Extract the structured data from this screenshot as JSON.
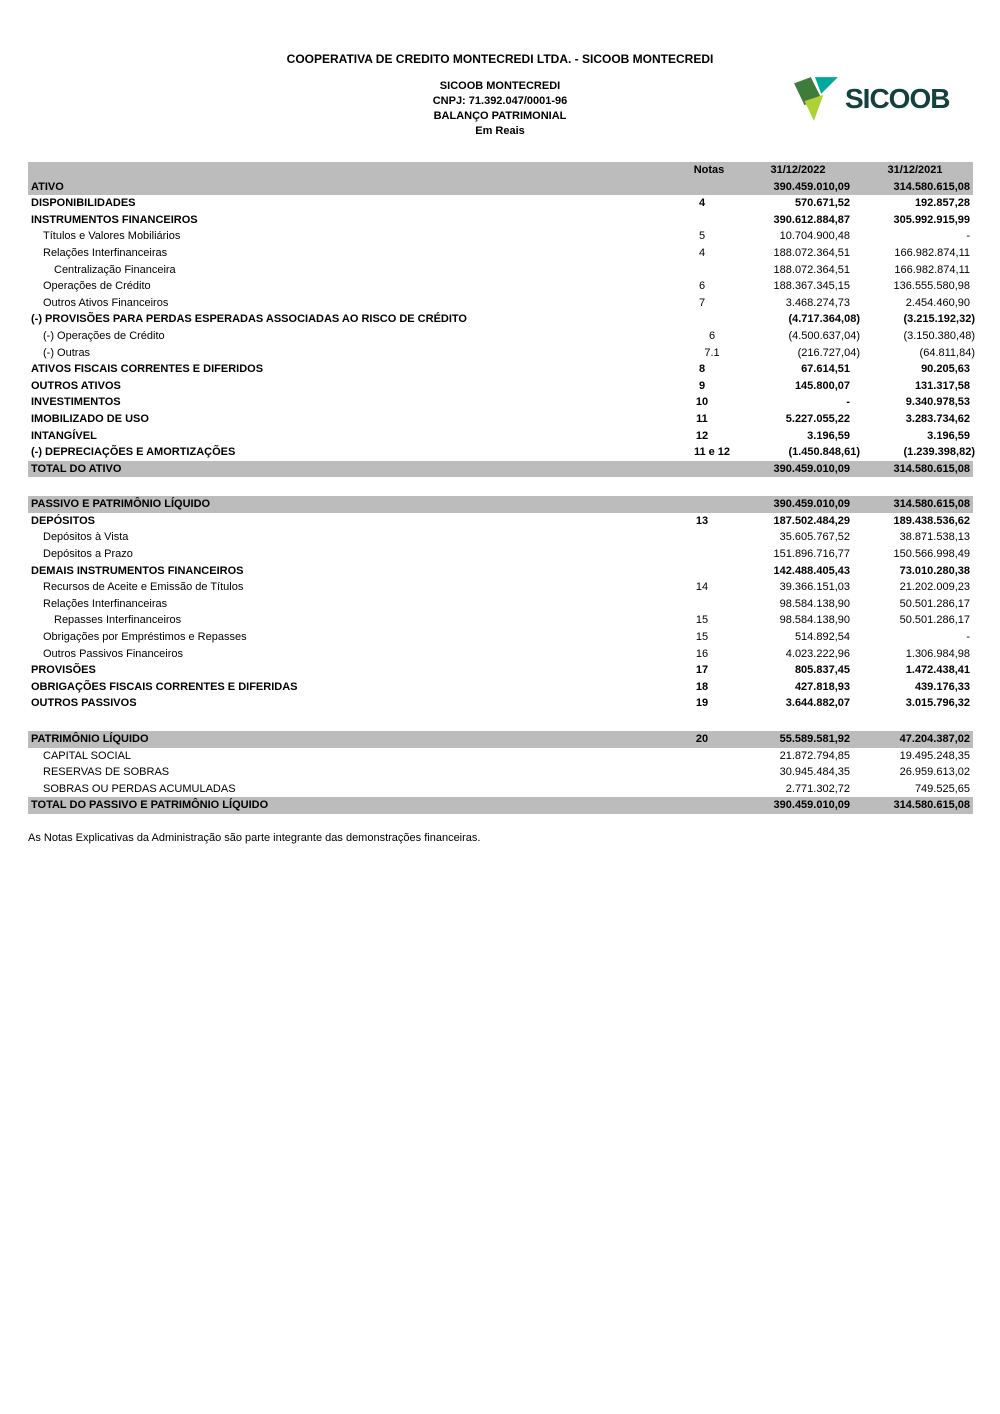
{
  "header": {
    "company_line": "COOPERATIVA DE CREDITO MONTECREDI LTDA. - SICOOB MONTECREDI",
    "entity_name": "SICOOB MONTECREDI",
    "cnpj_line": "CNPJ: 71.392.047/0001-96",
    "statement_title": "BALANÇO PATRIMONIAL",
    "currency_note": "Em Reais",
    "logo": {
      "text": "SICOOB",
      "colors": {
        "wordmark": "#14403d",
        "dark_green": "#3f7c3c",
        "teal": "#00a99b",
        "lime": "#aed136"
      }
    }
  },
  "table": {
    "band_color": "#bcbcbc",
    "columns": [
      "Notas",
      "31/12/2022",
      "31/12/2021"
    ],
    "rows": [
      {
        "label": "ATIVO",
        "nota": "",
        "v2022": "390.459.010,09",
        "v2021": "314.580.615,08",
        "style": "section"
      },
      {
        "label": "DISPONIBILIDADES",
        "nota": "4",
        "v2022": "570.671,52",
        "v2021": "192.857,28",
        "style": "bold"
      },
      {
        "label": "INSTRUMENTOS FINANCEIROS",
        "nota": "",
        "v2022": "390.612.884,87",
        "v2021": "305.992.915,99",
        "style": "bold"
      },
      {
        "label": "Títulos e Valores Mobiliários",
        "nota": "5",
        "v2022": "10.704.900,48",
        "v2021": "-",
        "style": "item"
      },
      {
        "label": "Relações Interfinanceiras",
        "nota": "4",
        "v2022": "188.072.364,51",
        "v2021": "166.982.874,11",
        "style": "item"
      },
      {
        "label": "Centralização Financeira",
        "nota": "",
        "v2022": "188.072.364,51",
        "v2021": "166.982.874,11",
        "style": "item2"
      },
      {
        "label": "Operações de Crédito",
        "nota": "6",
        "v2022": "188.367.345,15",
        "v2021": "136.555.580,98",
        "style": "item"
      },
      {
        "label": "Outros Ativos Financeiros",
        "nota": "7",
        "v2022": "3.468.274,73",
        "v2021": "2.454.460,90",
        "style": "item"
      },
      {
        "label": "(-) PROVISÕES PARA PERDAS ESPERADAS ASSOCIADAS AO RISCO DE CRÉDITO",
        "nota": "",
        "v2022": "(4.717.364,08)",
        "v2021": "(3.215.192,32)",
        "style": "bold"
      },
      {
        "label": "(-) Operações de Crédito",
        "nota": "6",
        "v2022": "(4.500.637,04)",
        "v2021": "(3.150.380,48)",
        "style": "item"
      },
      {
        "label": "(-) Outras",
        "nota": "7.1",
        "v2022": "(216.727,04)",
        "v2021": "(64.811,84)",
        "style": "item"
      },
      {
        "label": "ATIVOS FISCAIS CORRENTES E DIFERIDOS",
        "nota": "8",
        "v2022": "67.614,51",
        "v2021": "90.205,63",
        "style": "bold"
      },
      {
        "label": "OUTROS ATIVOS",
        "nota": "9",
        "v2022": "145.800,07",
        "v2021": "131.317,58",
        "style": "bold"
      },
      {
        "label": "INVESTIMENTOS",
        "nota": "10",
        "v2022": "-",
        "v2021": "9.340.978,53",
        "style": "bold"
      },
      {
        "label": "IMOBILIZADO DE USO",
        "nota": "11",
        "v2022": "5.227.055,22",
        "v2021": "3.283.734,62",
        "style": "bold"
      },
      {
        "label": "INTANGÍVEL",
        "nota": "12",
        "v2022": "3.196,59",
        "v2021": "3.196,59",
        "style": "bold"
      },
      {
        "label": "(-) DEPRECIAÇÕES E AMORTIZAÇÕES",
        "nota": "11 e 12",
        "v2022": "(1.450.848,61)",
        "v2021": "(1.239.398,82)",
        "style": "bold"
      },
      {
        "label": "TOTAL DO ATIVO",
        "nota": "",
        "v2022": "390.459.010,09",
        "v2021": "314.580.615,08",
        "style": "total"
      },
      {
        "style": "gap"
      },
      {
        "label": "PASSIVO E PATRIMÔNIO LÍQUIDO",
        "nota": "",
        "v2022": "390.459.010,09",
        "v2021": "314.580.615,08",
        "style": "section"
      },
      {
        "label": "DEPÓSITOS",
        "nota": "13",
        "v2022": "187.502.484,29",
        "v2021": "189.438.536,62",
        "style": "bold"
      },
      {
        "label": "Depósitos à Vista",
        "nota": "",
        "v2022": "35.605.767,52",
        "v2021": "38.871.538,13",
        "style": "item"
      },
      {
        "label": "Depósitos a Prazo",
        "nota": "",
        "v2022": "151.896.716,77",
        "v2021": "150.566.998,49",
        "style": "item"
      },
      {
        "label": "DEMAIS INSTRUMENTOS FINANCEIROS",
        "nota": "",
        "v2022": "142.488.405,43",
        "v2021": "73.010.280,38",
        "style": "bold"
      },
      {
        "label": "Recursos de Aceite e Emissão de Títulos",
        "nota": "14",
        "v2022": "39.366.151,03",
        "v2021": "21.202.009,23",
        "style": "item"
      },
      {
        "label": "Relações Interfinanceiras",
        "nota": "",
        "v2022": "98.584.138,90",
        "v2021": "50.501.286,17",
        "style": "item"
      },
      {
        "label": "Repasses Interfinanceiros",
        "nota": "15",
        "v2022": "98.584.138,90",
        "v2021": "50.501.286,17",
        "style": "item2"
      },
      {
        "label": "Obrigações por Empréstimos e Repasses",
        "nota": "15",
        "v2022": "514.892,54",
        "v2021": "-",
        "style": "item"
      },
      {
        "label": "Outros Passivos Financeiros",
        "nota": "16",
        "v2022": "4.023.222,96",
        "v2021": "1.306.984,98",
        "style": "item"
      },
      {
        "label": "PROVISÕES",
        "nota": "17",
        "v2022": "805.837,45",
        "v2021": "1.472.438,41",
        "style": "bold"
      },
      {
        "label": "OBRIGAÇÕES FISCAIS CORRENTES E DIFERIDAS",
        "nota": "18",
        "v2022": "427.818,93",
        "v2021": "439.176,33",
        "style": "bold"
      },
      {
        "label": "OUTROS PASSIVOS",
        "nota": "19",
        "v2022": "3.644.882,07",
        "v2021": "3.015.796,32",
        "style": "bold"
      },
      {
        "style": "gap"
      },
      {
        "label": "PATRIMÔNIO LÍQUIDO",
        "nota": "20",
        "v2022": "55.589.581,92",
        "v2021": "47.204.387,02",
        "style": "section"
      },
      {
        "label": "CAPITAL SOCIAL",
        "nota": "",
        "v2022": "21.872.794,85",
        "v2021": "19.495.248,35",
        "style": "item"
      },
      {
        "label": "RESERVAS DE SOBRAS",
        "nota": "",
        "v2022": "30.945.484,35",
        "v2021": "26.959.613,02",
        "style": "item"
      },
      {
        "label": "SOBRAS OU PERDAS ACUMULADAS",
        "nota": "",
        "v2022": "2.771.302,72",
        "v2021": "749.525,65",
        "style": "item"
      },
      {
        "label": "TOTAL DO PASSIVO E PATRIMÔNIO LÍQUIDO",
        "nota": "",
        "v2022": "390.459.010,09",
        "v2021": "314.580.615,08",
        "style": "total"
      }
    ]
  },
  "footer": {
    "note": "As Notas Explicativas da Administração são parte integrante das demonstrações financeiras."
  }
}
